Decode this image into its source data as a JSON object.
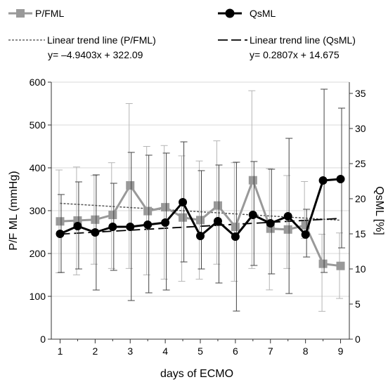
{
  "chart_data": {
    "type": "line",
    "xlabel": "days of ECMO",
    "ylabel_left": "P/F ML (mmHg)",
    "ylabel_right": "QsML [%]",
    "xlim": [
      0.75,
      9.25
    ],
    "ylim_left": [
      0,
      600
    ],
    "ylim_right": [
      0,
      36.6
    ],
    "x_ticks": [
      "1",
      "2",
      "3",
      "4",
      "5",
      "6",
      "7",
      "8",
      "9"
    ],
    "y_left_ticks": [
      "0",
      "100",
      "200",
      "300",
      "400",
      "500",
      "600"
    ],
    "y_right_ticks": [
      "0",
      "5",
      "10",
      "15",
      "20",
      "25",
      "30",
      "35"
    ],
    "grid": true,
    "legend": {
      "series_pf": "P/FML",
      "series_qs": "QsML",
      "trend_pf": "Linear trend line (P/FML)",
      "trend_qs": "Linear trend line (QsML)",
      "eq_pf": "y= –4.9403x + 322.09",
      "eq_qs": "y= 0.2807x + 14.675"
    },
    "x": [
      1,
      1.5,
      2,
      2.5,
      3,
      3.5,
      4,
      4.5,
      5,
      5.5,
      6,
      6.5,
      7,
      7.5,
      8,
      8.5,
      9
    ],
    "series": [
      {
        "name": "P/FML",
        "axis": "left",
        "color": "#999999",
        "marker": "square",
        "values": [
          275,
          277,
          279,
          290,
          359,
          299,
          308,
          284,
          278,
          312,
          262,
          371,
          258,
          256,
          266,
          176,
          171
        ],
        "error_low": [
          155,
          150,
          175,
          165,
          165,
          150,
          140,
          135,
          140,
          175,
          135,
          165,
          115,
          165,
          235,
          65,
          95
        ],
        "error_high": [
          395,
          402,
          382,
          412,
          550,
          450,
          452,
          428,
          416,
          463,
          412,
          580,
          398,
          382,
          368,
          245,
          248
        ]
      },
      {
        "name": "QsML",
        "axis": "right",
        "color": "#000000",
        "marker": "circle",
        "values": [
          15.0,
          16.1,
          15.2,
          16.0,
          16.0,
          16.3,
          16.6,
          19.5,
          14.7,
          16.8,
          14.6,
          17.7,
          16.5,
          17.5,
          14.9,
          22.6,
          22.8
        ],
        "error_low": [
          9.5,
          10.0,
          7.0,
          9.8,
          5.5,
          6.6,
          7.0,
          11.0,
          10.0,
          8.0,
          4.0,
          10.5,
          9.3,
          6.5,
          11.7,
          9.5,
          13.0
        ],
        "error_high": [
          20.6,
          22.4,
          23.4,
          22.2,
          26.6,
          26.2,
          26.5,
          28.1,
          24.0,
          24.8,
          25.2,
          25.3,
          24.2,
          28.6,
          18.5,
          35.6,
          32.9
        ]
      }
    ],
    "trendlines": [
      {
        "name": "Linear trend line (P/FML)",
        "axis": "left",
        "slope": -4.9403,
        "intercept": 322.09,
        "style": "dotted"
      },
      {
        "name": "Linear trend line (QsML)",
        "axis": "right",
        "slope": 0.2807,
        "intercept": 14.675,
        "style": "dashed"
      }
    ]
  }
}
